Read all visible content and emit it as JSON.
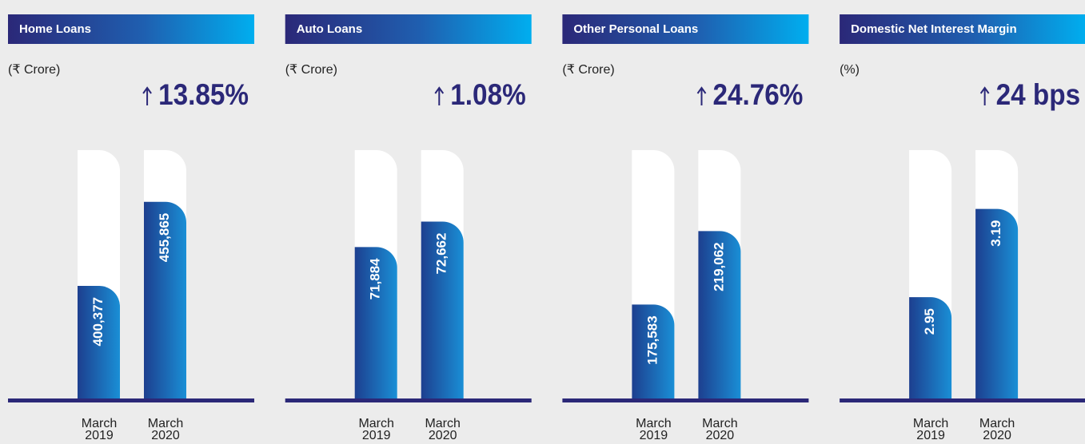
{
  "chart_data": [
    {
      "type": "bar",
      "title": "Home Loans",
      "unit": "(₹ Crore)",
      "change": "13.85%",
      "categories": [
        "March 2019",
        "March 2020"
      ],
      "values": [
        400377,
        455865
      ],
      "value_labels": [
        "400,377",
        "455,865"
      ],
      "ylim": [
        325000,
        490000
      ]
    },
    {
      "type": "bar",
      "title": "Auto Loans",
      "unit": "(₹ Crore)",
      "change": "1.08%",
      "categories": [
        "March 2019",
        "March 2020"
      ],
      "values": [
        71884,
        72662
      ],
      "value_labels": [
        "71,884",
        "72,662"
      ],
      "ylim": [
        67200,
        74850
      ]
    },
    {
      "type": "bar",
      "title": "Other Personal Loans",
      "unit": "(₹ Crore)",
      "change": "24.76%",
      "categories": [
        "March 2019",
        "March 2020"
      ],
      "values": [
        175583,
        219062
      ],
      "value_labels": [
        "175,583",
        "219,062"
      ],
      "ylim": [
        119000,
        267000
      ]
    },
    {
      "type": "bar",
      "title": "Domestic Net Interest Margin",
      "unit": "(%)",
      "change": "24 bps",
      "categories": [
        "March 2019",
        "March 2020"
      ],
      "values": [
        2.95,
        3.19
      ],
      "ylim": [
        2.67,
        3.35
      ]
    }
  ]
}
